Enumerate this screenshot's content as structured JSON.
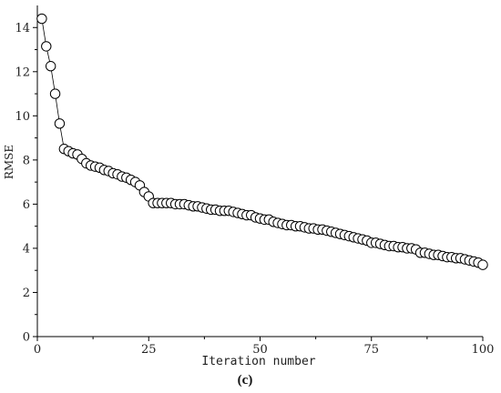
{
  "chart_data": {
    "type": "line",
    "xlabel": "Iteration number",
    "ylabel": "RMSE",
    "caption": "(c)",
    "xlim": [
      0,
      100
    ],
    "ylim": [
      0,
      15
    ],
    "xticks": [
      0,
      25,
      50,
      75,
      100
    ],
    "yticks": [
      0,
      2,
      4,
      6,
      8,
      10,
      12,
      14
    ],
    "grid": false,
    "marker": "open-circle",
    "series": [
      {
        "x": [
          1,
          2,
          3,
          4,
          5,
          6,
          7,
          8,
          9,
          10,
          11,
          12,
          13,
          14,
          15,
          16,
          17,
          18,
          19,
          20,
          21,
          22,
          23,
          24,
          25,
          26,
          27,
          28,
          29,
          30,
          31,
          32,
          33,
          34,
          35,
          36,
          37,
          38,
          39,
          40,
          41,
          42,
          43,
          44,
          45,
          46,
          47,
          48,
          49,
          50,
          51,
          52,
          53,
          54,
          55,
          56,
          57,
          58,
          59,
          60,
          61,
          62,
          63,
          64,
          65,
          66,
          67,
          68,
          69,
          70,
          71,
          72,
          73,
          74,
          75,
          76,
          77,
          78,
          79,
          80,
          81,
          82,
          83,
          84,
          85,
          86,
          87,
          88,
          89,
          90,
          91,
          92,
          93,
          94,
          95,
          96,
          97,
          98,
          99,
          100
        ],
        "values": [
          14.4,
          13.15,
          12.25,
          11.0,
          9.65,
          8.5,
          8.4,
          8.3,
          8.25,
          8.05,
          7.85,
          7.75,
          7.7,
          7.65,
          7.55,
          7.5,
          7.4,
          7.35,
          7.25,
          7.2,
          7.1,
          7.0,
          6.85,
          6.55,
          6.35,
          6.05,
          6.05,
          6.05,
          6.05,
          6.05,
          6.0,
          6.0,
          6.0,
          5.95,
          5.9,
          5.9,
          5.85,
          5.8,
          5.75,
          5.75,
          5.7,
          5.7,
          5.7,
          5.65,
          5.6,
          5.55,
          5.5,
          5.5,
          5.4,
          5.35,
          5.3,
          5.3,
          5.2,
          5.15,
          5.1,
          5.05,
          5.05,
          5.0,
          5.0,
          4.95,
          4.9,
          4.9,
          4.85,
          4.85,
          4.8,
          4.75,
          4.7,
          4.65,
          4.6,
          4.55,
          4.5,
          4.45,
          4.4,
          4.35,
          4.25,
          4.25,
          4.2,
          4.15,
          4.1,
          4.1,
          4.05,
          4.05,
          4.0,
          4.0,
          3.95,
          3.8,
          3.8,
          3.75,
          3.7,
          3.7,
          3.65,
          3.6,
          3.6,
          3.55,
          3.55,
          3.5,
          3.45,
          3.4,
          3.35,
          3.25
        ]
      }
    ]
  }
}
